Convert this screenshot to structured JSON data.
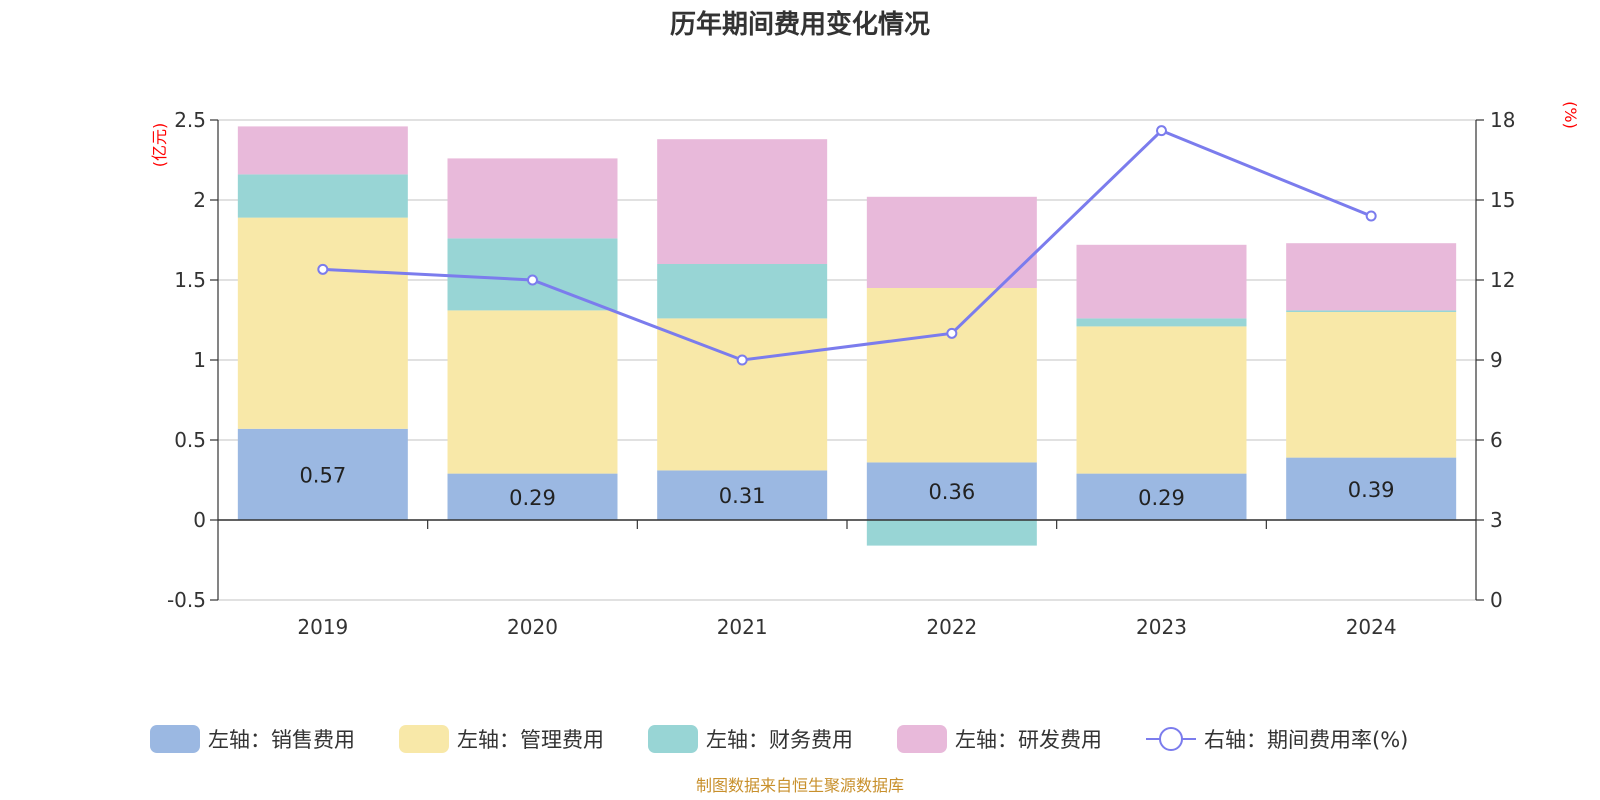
{
  "chart_data": {
    "type": "bar",
    "title": "历年期间费用变化情况",
    "categories": [
      "2019",
      "2020",
      "2021",
      "2022",
      "2023",
      "2024"
    ],
    "left_axis": {
      "unit": "(亿元)",
      "ylim": [
        -0.5,
        2.5
      ],
      "ticks": [
        "2.5",
        "2",
        "1.5",
        "1",
        "0.5",
        "0",
        "-0.5"
      ]
    },
    "right_axis": {
      "unit": "(%)",
      "ylim": [
        0,
        18
      ],
      "ticks": [
        "18",
        "15",
        "12",
        "9",
        "6",
        "3",
        "0"
      ]
    },
    "stacked": true,
    "series": [
      {
        "name": "左轴：销售费用",
        "type": "bar",
        "axis": "left",
        "color": "#9bb8e2",
        "values": [
          0.57,
          0.29,
          0.31,
          0.36,
          0.29,
          0.39
        ],
        "labels": [
          "0.57",
          "0.29",
          "0.31",
          "0.36",
          "0.29",
          "0.39"
        ]
      },
      {
        "name": "左轴：管理费用",
        "type": "bar",
        "axis": "left",
        "color": "#f8e8a8",
        "values": [
          1.32,
          1.02,
          0.95,
          1.09,
          0.92,
          0.91
        ]
      },
      {
        "name": "左轴：财务费用",
        "type": "bar",
        "axis": "left",
        "color": "#98d5d5",
        "values": [
          0.27,
          0.45,
          0.34,
          -0.16,
          0.05,
          0.01
        ]
      },
      {
        "name": "左轴：研发费用",
        "type": "bar",
        "axis": "left",
        "color": "#e8b9da",
        "values": [
          0.3,
          0.5,
          0.78,
          0.57,
          0.46,
          0.42
        ]
      },
      {
        "name": "右轴：期间费用率(%)",
        "type": "line",
        "axis": "right",
        "color": "#7b7ced",
        "values": [
          12.4,
          12.0,
          9.0,
          10.0,
          17.6,
          14.4
        ]
      }
    ],
    "grid": true,
    "legend": "bottom",
    "source": "制图数据来自恒生聚源数据库"
  }
}
